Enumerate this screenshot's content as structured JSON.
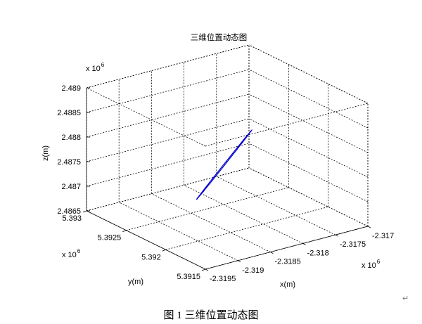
{
  "chart_data": {
    "type": "line",
    "title": "三维位置动态图",
    "xlabel": "x(m)",
    "ylabel": "y(m)",
    "zlabel": "z(m)",
    "x_exponent": "x 10",
    "x_exponent_power": "6",
    "y_exponent": "x 10",
    "y_exponent_power": "6",
    "z_exponent": "x 10",
    "z_exponent_power": "6",
    "xlim": [
      -2.3195,
      -2.317
    ],
    "ylim": [
      5.3915,
      5.393
    ],
    "zlim": [
      2.4865,
      2.489
    ],
    "x_ticks": [
      -2.3195,
      -2.319,
      -2.3185,
      -2.318,
      -2.3175,
      -2.317
    ],
    "x_tick_labels": [
      "-2.3195",
      "-2.319",
      "-2.3185",
      "-2.318",
      "-2.3175",
      "-2.317"
    ],
    "y_ticks": [
      5.3915,
      5.392,
      5.3925,
      5.393
    ],
    "y_tick_labels": [
      "5.3915",
      "5.392",
      "5.3925",
      "5.393"
    ],
    "z_ticks": [
      2.4865,
      2.487,
      2.4875,
      2.488,
      2.4885,
      2.489
    ],
    "z_tick_labels": [
      "2.4865",
      "2.487",
      "2.4875",
      "2.488",
      "2.4885",
      "2.489"
    ],
    "grid": true,
    "series": [
      {
        "color": "#0000cc",
        "start": [
          -2.3186,
          5.39235,
          2.48693
        ],
        "end": [
          -2.3183,
          5.3919,
          2.48859
        ],
        "half_width": 0.006,
        "points": 60
      }
    ]
  },
  "caption": "图 1  三维位置动态图",
  "paragraph_mark": "↵"
}
